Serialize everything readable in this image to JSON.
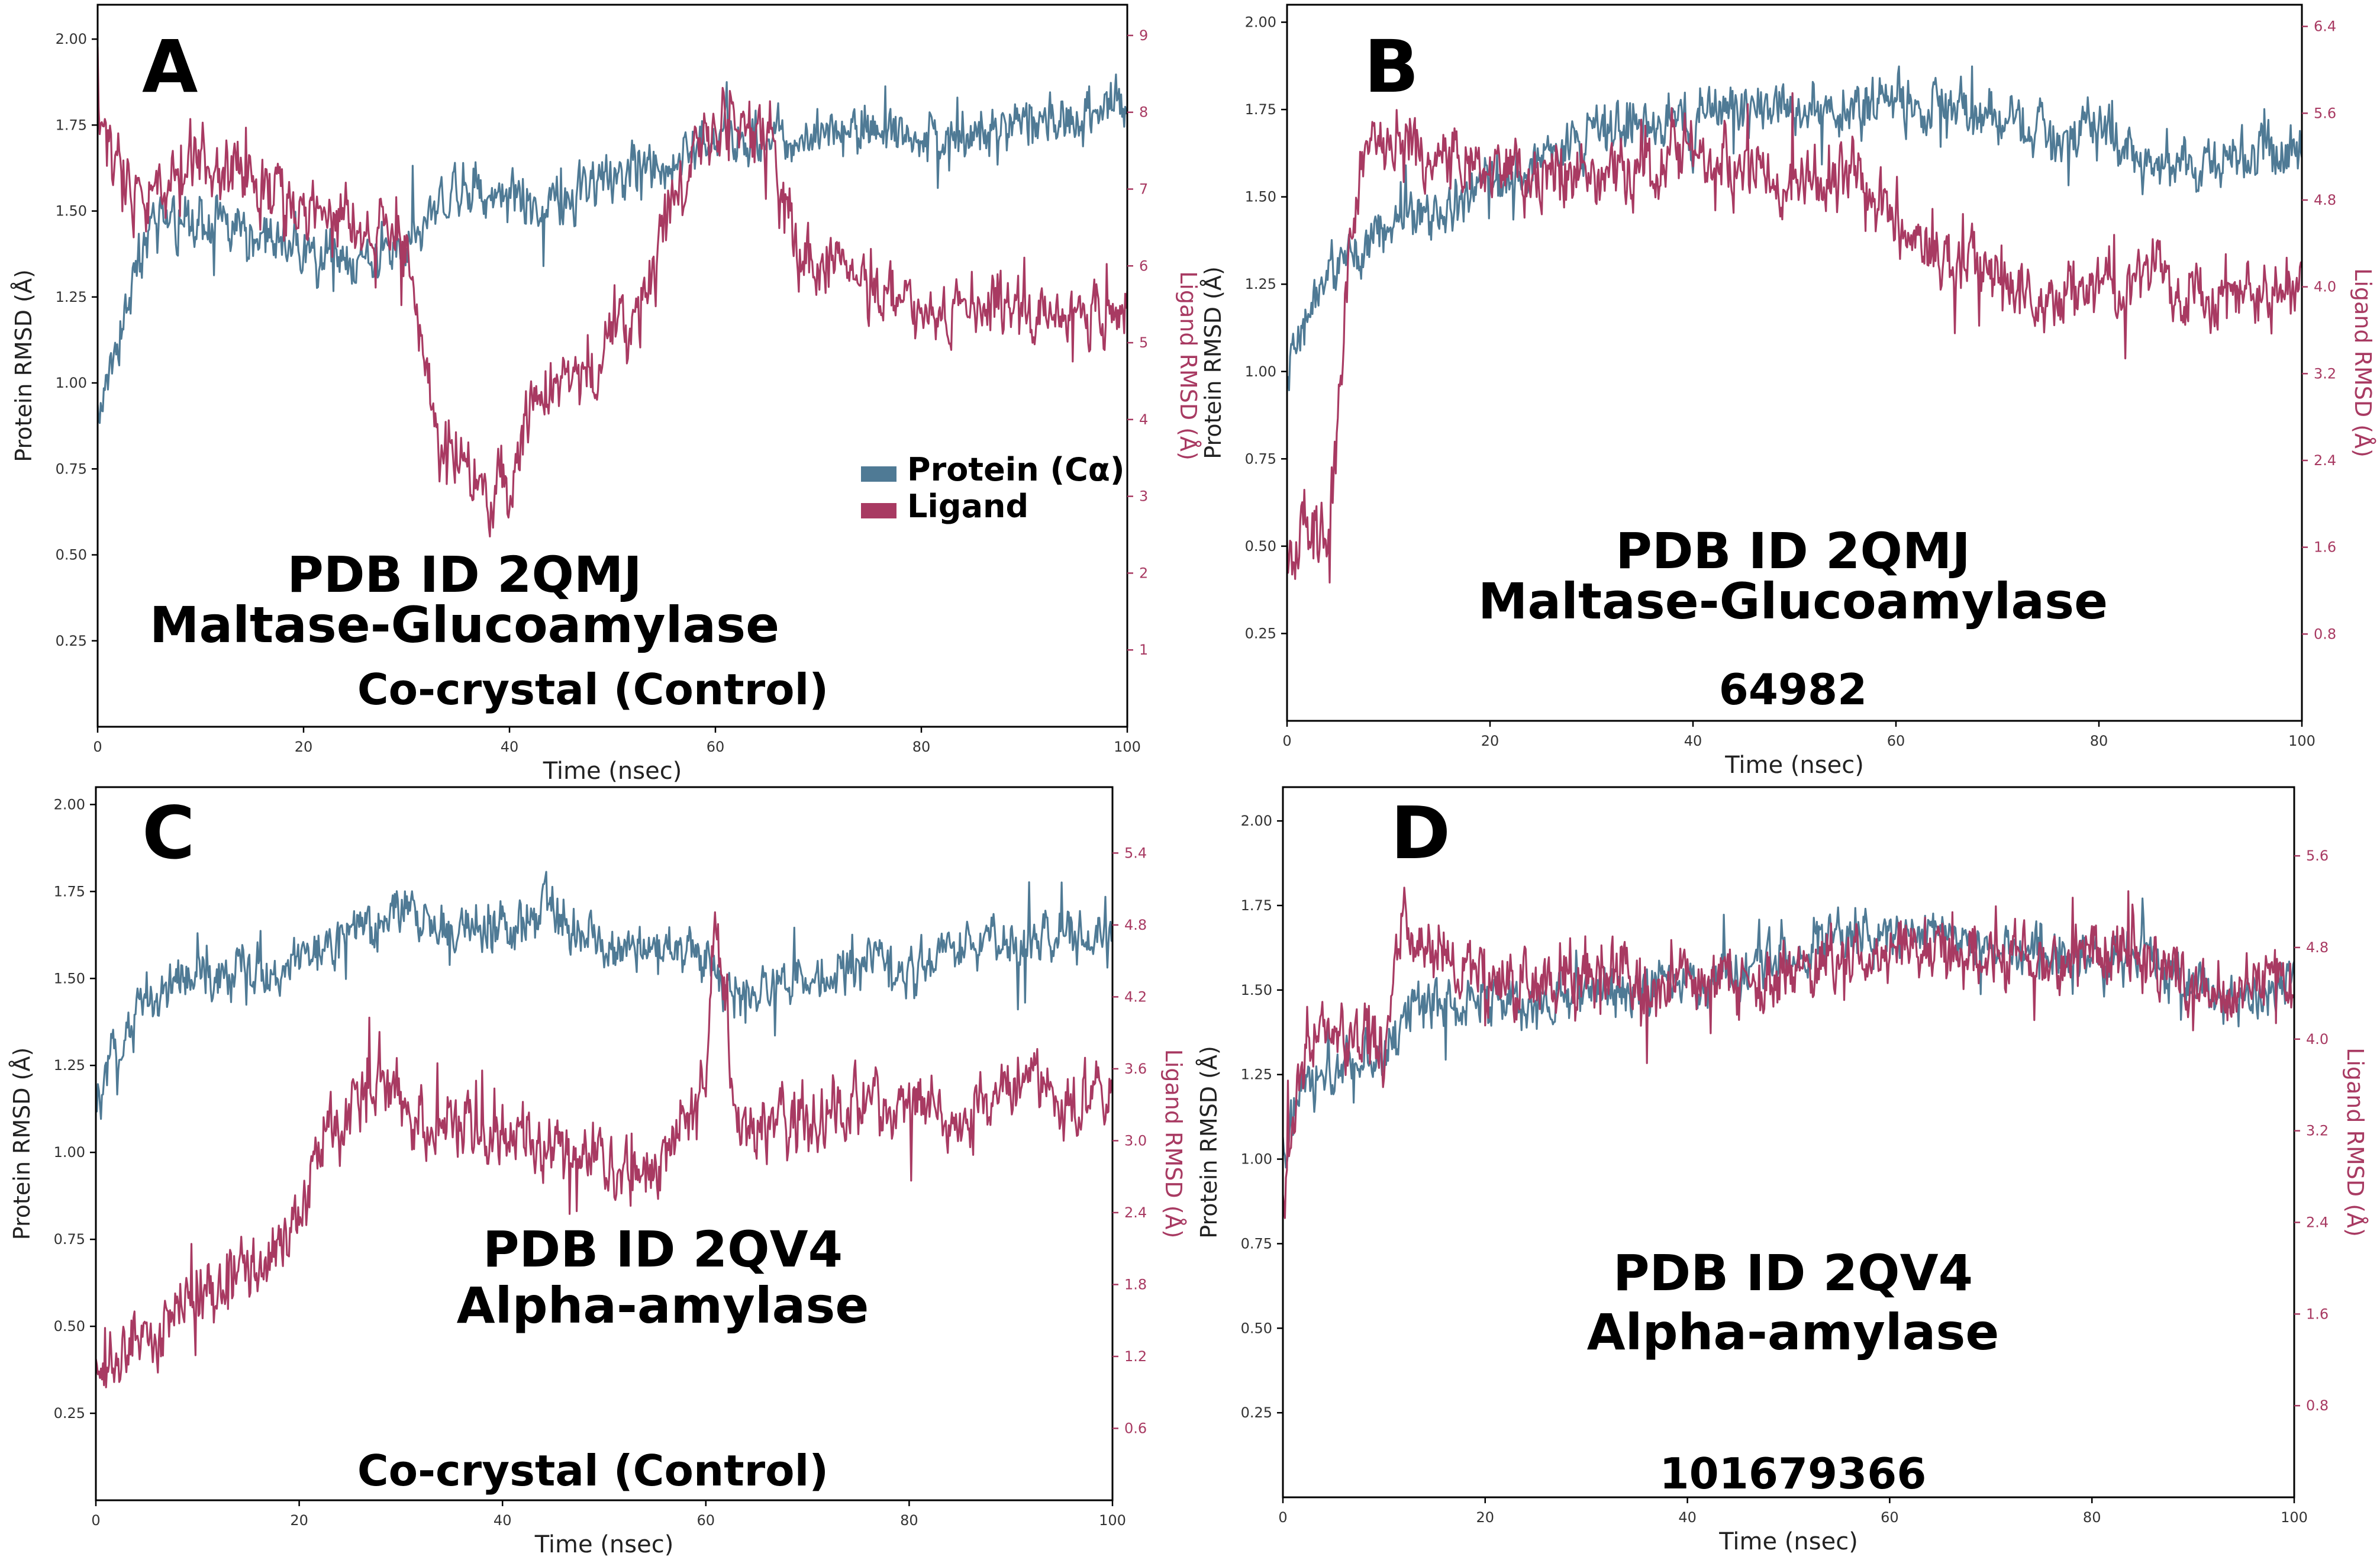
{
  "figure": {
    "series_names": {
      "protein": "Protein (Cα)",
      "ligand": "Ligand"
    },
    "colors": {
      "protein": "#4f7a95",
      "ligand": "#a83a62",
      "axis": "#000000",
      "background": "#ffffff"
    },
    "legend": {
      "protein": "Protein (Cα)",
      "ligand": "Ligand"
    }
  },
  "chart_data": [
    {
      "panel": "A",
      "type": "line",
      "title": "",
      "xlabel": "Time (nsec)",
      "ylabel_left": "Protein RMSD (Å)",
      "ylabel_right": "Ligand RMSD (Å)",
      "xlim": [
        0,
        100
      ],
      "ylim_left": [
        0.0,
        2.1
      ],
      "ylim_right": [
        0,
        9.4
      ],
      "xticks": [
        0,
        20,
        40,
        60,
        80,
        100
      ],
      "yticks_left": [
        "0.25",
        "0.50",
        "0.75",
        "1.00",
        "1.25",
        "1.50",
        "1.75",
        "2.00"
      ],
      "yticks_right": [
        "1",
        "2",
        "3",
        "4",
        "5",
        "6",
        "7",
        "8",
        "9"
      ],
      "legend_position": "center-right",
      "annotations": [
        "PDB ID  2QMJ",
        "Maltase-Glucoamylase",
        "Co-crystal (Control)"
      ],
      "series": [
        {
          "name": "Protein (Cα)",
          "axis": "left",
          "x": [
            0,
            2,
            5,
            10,
            15,
            20,
            25,
            30,
            35,
            40,
            45,
            50,
            55,
            60,
            65,
            70,
            75,
            80,
            85,
            90,
            95,
            100
          ],
          "values": [
            0.9,
            1.15,
            1.45,
            1.48,
            1.42,
            1.38,
            1.35,
            1.42,
            1.58,
            1.55,
            1.52,
            1.6,
            1.65,
            1.72,
            1.7,
            1.72,
            1.75,
            1.7,
            1.72,
            1.75,
            1.78,
            1.82
          ]
        },
        {
          "name": "Ligand",
          "axis": "right",
          "x": [
            0,
            2,
            5,
            10,
            15,
            20,
            25,
            28,
            30,
            33,
            35,
            38,
            40,
            43,
            45,
            48,
            50,
            53,
            55,
            58,
            60,
            63,
            65,
            68,
            70,
            75,
            80,
            85,
            90,
            95,
            100
          ],
          "values": [
            8,
            7.2,
            7.0,
            7.3,
            7.1,
            6.7,
            6.6,
            6.5,
            6.2,
            3.7,
            3.5,
            3.0,
            3.3,
            4.2,
            4.5,
            4.3,
            5.2,
            5.5,
            6.5,
            7.4,
            7.8,
            7.9,
            7.8,
            6.0,
            6.2,
            5.8,
            5.4,
            5.5,
            5.2,
            5.4,
            5.5
          ]
        }
      ]
    },
    {
      "panel": "B",
      "type": "line",
      "title": "",
      "xlabel": "Time (nsec)",
      "ylabel_left": "Protein RMSD (Å)",
      "ylabel_right": "Ligand RMSD (Å)",
      "xlim": [
        0,
        100
      ],
      "ylim_left": [
        0.0,
        2.05
      ],
      "ylim_right": [
        0,
        6.6
      ],
      "xticks": [
        0,
        20,
        40,
        60,
        80,
        100
      ],
      "yticks_left": [
        "0.25",
        "0.50",
        "0.75",
        "1.00",
        "1.25",
        "1.50",
        "1.75",
        "2.00"
      ],
      "yticks_right": [
        "0.8",
        "1.6",
        "2.4",
        "3.2",
        "4.0",
        "4.8",
        "5.6",
        "6.4"
      ],
      "legend_position": "none",
      "annotations": [
        "PDB ID  2QMJ",
        "Maltase-Glucoamylase",
        "64982"
      ],
      "series": [
        {
          "name": "Protein (Cα)",
          "axis": "left",
          "x": [
            0,
            2,
            5,
            8,
            10,
            15,
            20,
            25,
            30,
            35,
            40,
            45,
            50,
            55,
            60,
            65,
            70,
            75,
            80,
            85,
            90,
            95,
            100
          ],
          "values": [
            1.0,
            1.15,
            1.3,
            1.38,
            1.42,
            1.45,
            1.55,
            1.6,
            1.68,
            1.7,
            1.72,
            1.75,
            1.76,
            1.75,
            1.78,
            1.75,
            1.72,
            1.68,
            1.7,
            1.6,
            1.6,
            1.62,
            1.65
          ]
        },
        {
          "name": "Ligand",
          "axis": "right",
          "x": [
            0,
            2,
            4,
            5,
            6,
            8,
            10,
            15,
            20,
            25,
            30,
            35,
            40,
            45,
            50,
            55,
            58,
            60,
            65,
            70,
            75,
            80,
            85,
            90,
            95,
            100
          ],
          "values": [
            1.6,
            1.65,
            1.8,
            2.8,
            4.2,
            5.4,
            5.3,
            5.2,
            5.2,
            5.0,
            5.1,
            5.0,
            5.3,
            5.1,
            4.9,
            5.0,
            4.8,
            4.6,
            4.3,
            4.0,
            3.8,
            4.0,
            4.1,
            3.9,
            3.9,
            4.0
          ]
        }
      ]
    },
    {
      "panel": "C",
      "type": "line",
      "title": "",
      "xlabel": "Time (nsec)",
      "ylabel_left": "Protein RMSD (Å)",
      "ylabel_right": "Ligand RMSD (Å)",
      "xlim": [
        0,
        100
      ],
      "ylim_left": [
        0.0,
        2.05
      ],
      "ylim_right": [
        0,
        5.95
      ],
      "xticks": [
        0,
        20,
        40,
        60,
        80,
        100
      ],
      "yticks_left": [
        "0.25",
        "0.50",
        "0.75",
        "1.00",
        "1.25",
        "1.50",
        "1.75",
        "2.00"
      ],
      "yticks_right": [
        "0.6",
        "1.2",
        "1.8",
        "2.4",
        "3.0",
        "3.6",
        "4.2",
        "4.8",
        "5.4"
      ],
      "legend_position": "none",
      "annotations": [
        "PDB ID  2QV4",
        "Alpha-amylase",
        "Co-crystal (Control)"
      ],
      "series": [
        {
          "name": "Protein (Cα)",
          "axis": "left",
          "x": [
            0,
            2,
            5,
            10,
            15,
            20,
            25,
            30,
            35,
            40,
            45,
            50,
            55,
            60,
            62,
            65,
            70,
            75,
            80,
            85,
            90,
            95,
            100
          ],
          "values": [
            1.1,
            1.3,
            1.45,
            1.5,
            1.52,
            1.55,
            1.62,
            1.7,
            1.62,
            1.65,
            1.68,
            1.6,
            1.58,
            1.55,
            1.45,
            1.48,
            1.5,
            1.55,
            1.52,
            1.58,
            1.62,
            1.62,
            1.6
          ]
        },
        {
          "name": "Ligand",
          "axis": "right",
          "x": [
            0,
            3,
            6,
            10,
            15,
            20,
            22,
            25,
            28,
            30,
            33,
            35,
            40,
            45,
            50,
            55,
            58,
            60,
            61,
            63,
            65,
            70,
            75,
            80,
            85,
            90,
            95,
            100
          ],
          "values": [
            1.0,
            1.2,
            1.4,
            1.7,
            1.9,
            2.3,
            3.0,
            3.2,
            3.6,
            3.4,
            3.0,
            3.1,
            3.0,
            2.9,
            2.8,
            2.7,
            3.2,
            3.4,
            4.8,
            3.2,
            3.1,
            3.2,
            3.3,
            3.3,
            3.2,
            3.5,
            3.3,
            3.3
          ]
        }
      ]
    },
    {
      "panel": "D",
      "type": "line",
      "title": "",
      "xlabel": "Time (nsec)",
      "ylabel_left": "Protein RMSD (Å)",
      "ylabel_right": "Ligand RMSD (Å)",
      "xlim": [
        0,
        100
      ],
      "ylim_left": [
        0.0,
        2.1
      ],
      "ylim_right": [
        0,
        6.2
      ],
      "xticks": [
        0,
        20,
        40,
        60,
        80,
        100
      ],
      "yticks_left": [
        "0.25",
        "0.50",
        "0.75",
        "1.00",
        "1.25",
        "1.50",
        "1.75",
        "2.00"
      ],
      "yticks_right": [
        "0.8",
        "1.6",
        "2.4",
        "3.2",
        "4.0",
        "4.8",
        "5.6"
      ],
      "legend_position": "none",
      "annotations": [
        "PDB ID  2QV4",
        "Alpha-amylase",
        "101679366"
      ],
      "series": [
        {
          "name": "Protein (Cα)",
          "axis": "left",
          "x": [
            0,
            2,
            5,
            8,
            10,
            12,
            15,
            20,
            25,
            30,
            35,
            40,
            45,
            50,
            55,
            60,
            65,
            70,
            75,
            80,
            85,
            90,
            95,
            100
          ],
          "values": [
            1.0,
            1.2,
            1.25,
            1.3,
            1.3,
            1.45,
            1.45,
            1.47,
            1.45,
            1.48,
            1.5,
            1.52,
            1.55,
            1.6,
            1.65,
            1.68,
            1.65,
            1.63,
            1.62,
            1.6,
            1.6,
            1.5,
            1.45,
            1.55
          ]
        },
        {
          "name": "Ligand",
          "axis": "right",
          "x": [
            0,
            1,
            2,
            4,
            6,
            8,
            10,
            11,
            12,
            15,
            20,
            25,
            30,
            35,
            40,
            45,
            50,
            55,
            60,
            65,
            70,
            75,
            80,
            85,
            90,
            95,
            100
          ],
          "values": [
            2.6,
            3.2,
            3.8,
            4.2,
            3.9,
            4.0,
            3.8,
            4.6,
            5.0,
            4.7,
            4.5,
            4.5,
            4.6,
            4.5,
            4.6,
            4.5,
            4.6,
            4.7,
            4.8,
            4.8,
            4.8,
            4.7,
            4.8,
            4.7,
            4.5,
            4.4,
            4.6
          ]
        }
      ]
    }
  ]
}
